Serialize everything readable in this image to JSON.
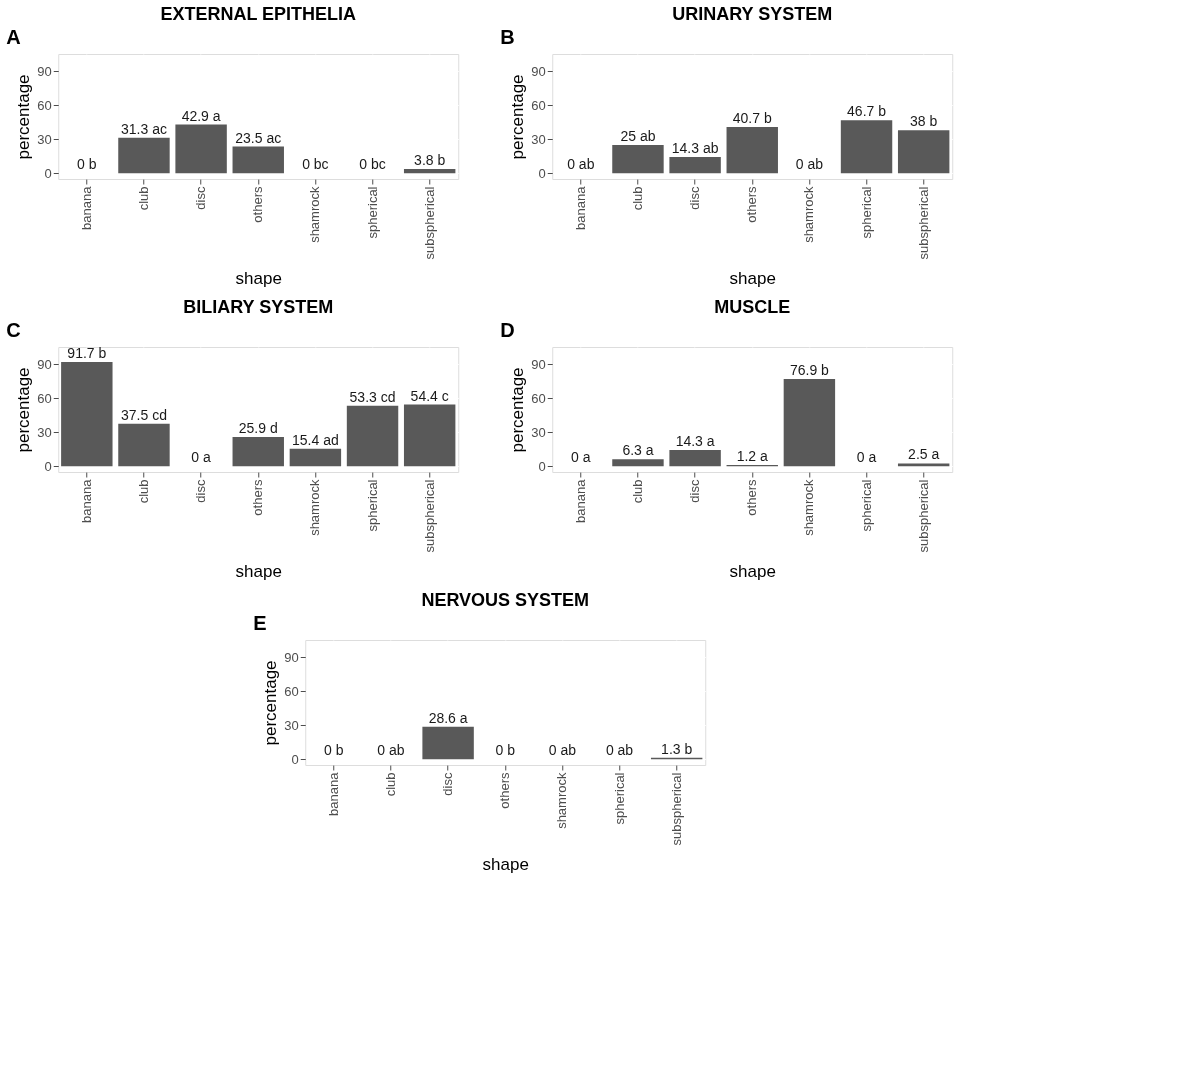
{
  "chart_data": [
    {
      "type": "bar",
      "title": "EXTERNAL EPITHELIA",
      "xlabel": "shape",
      "ylabel": "percentage",
      "color": "#595959",
      "grid": true,
      "ylim": [
        -5,
        105
      ],
      "yticks": [
        0,
        30,
        60,
        90
      ],
      "annotations": [
        "A"
      ],
      "categories": [
        "banana",
        "club",
        "disc",
        "others",
        "shamrock",
        "spherical",
        "subspherical"
      ],
      "values": [
        0,
        31.3,
        42.9,
        23.5,
        0,
        0,
        3.8
      ],
      "value_labels": [
        "0 b",
        "31.3 ac",
        "42.9 a",
        "23.5 ac",
        "0 bc",
        "0 bc",
        "3.8 b"
      ]
    },
    {
      "type": "bar",
      "title": "URINARY SYSTEM",
      "xlabel": "shape",
      "ylabel": "percentage",
      "color": "#595959",
      "grid": true,
      "ylim": [
        -5,
        105
      ],
      "yticks": [
        0,
        30,
        60,
        90
      ],
      "annotations": [
        "B"
      ],
      "categories": [
        "banana",
        "club",
        "disc",
        "others",
        "shamrock",
        "spherical",
        "subspherical"
      ],
      "values": [
        0,
        25,
        14.3,
        40.7,
        0,
        46.7,
        38
      ],
      "value_labels": [
        "0 ab",
        "25 ab",
        "14.3 ab",
        "40.7 b",
        "0 ab",
        "46.7 b",
        "38 b"
      ]
    },
    {
      "type": "bar",
      "title": "BILIARY SYSTEM",
      "xlabel": "shape",
      "ylabel": "percentage",
      "color": "#595959",
      "grid": true,
      "ylim": [
        -5,
        105
      ],
      "yticks": [
        0,
        30,
        60,
        90
      ],
      "annotations": [
        "C"
      ],
      "categories": [
        "banana",
        "club",
        "disc",
        "others",
        "shamrock",
        "spherical",
        "subspherical"
      ],
      "values": [
        91.7,
        37.5,
        0,
        25.9,
        15.4,
        53.3,
        54.4
      ],
      "value_labels": [
        "91.7 b",
        "37.5 cd",
        "0 a",
        "25.9 d",
        "15.4 ad",
        "53.3 cd",
        "54.4 c"
      ]
    },
    {
      "type": "bar",
      "title": "MUSCLE",
      "xlabel": "shape",
      "ylabel": "percentage",
      "color": "#595959",
      "grid": true,
      "ylim": [
        -5,
        105
      ],
      "yticks": [
        0,
        30,
        60,
        90
      ],
      "annotations": [
        "D"
      ],
      "categories": [
        "banana",
        "club",
        "disc",
        "others",
        "shamrock",
        "spherical",
        "subspherical"
      ],
      "values": [
        0,
        6.3,
        14.3,
        1.2,
        76.9,
        0,
        2.5
      ],
      "value_labels": [
        "0 a",
        "6.3 a",
        "14.3 a",
        "1.2 a",
        "76.9 b",
        "0 a",
        "2.5 a"
      ]
    },
    {
      "type": "bar",
      "title": "NERVOUS SYSTEM",
      "xlabel": "shape",
      "ylabel": "percentage",
      "color": "#595959",
      "grid": true,
      "ylim": [
        -5,
        105
      ],
      "yticks": [
        0,
        30,
        60,
        90
      ],
      "annotations": [
        "E"
      ],
      "categories": [
        "banana",
        "club",
        "disc",
        "others",
        "shamrock",
        "spherical",
        "subspherical"
      ],
      "values": [
        0,
        0,
        28.6,
        0,
        0,
        0,
        1.3
      ],
      "value_labels": [
        "0 b",
        "0 ab",
        "28.6 a",
        "0 b",
        "0 ab",
        "0 ab",
        "1.3 b"
      ]
    }
  ]
}
